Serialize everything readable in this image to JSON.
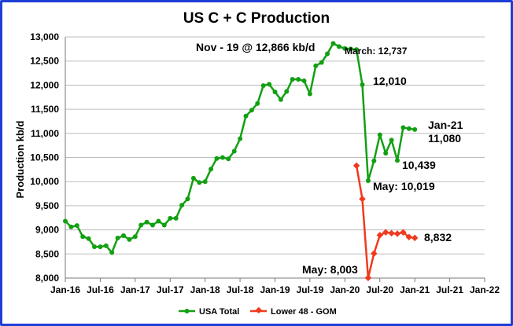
{
  "chart_data": {
    "type": "line",
    "title": "US C + C Production",
    "ylabel": "Production kb/d",
    "xlabel": "",
    "ylim": [
      8000,
      13000
    ],
    "yticks": [
      8000,
      8500,
      9000,
      9500,
      10000,
      10500,
      11000,
      11500,
      12000,
      12500,
      13000
    ],
    "ytick_labels": [
      "8,000",
      "8,500",
      "9,000",
      "9,500",
      "10,000",
      "10,500",
      "11,000",
      "11,500",
      "12,000",
      "12,500",
      "13,000"
    ],
    "xticks": [
      "Jan-16",
      "Jul-16",
      "Jan-17",
      "Jul-17",
      "Jan-18",
      "Jul-18",
      "Jan-19",
      "Jul-19",
      "Jan-20",
      "Jul-20",
      "Jan-21",
      "Jul-21",
      "Jan-22"
    ],
    "grid": "horizontal",
    "legend": "bottom",
    "series": [
      {
        "name": "USA Total",
        "color": "#12a012",
        "x": [
          "2016-01",
          "2016-02",
          "2016-03",
          "2016-04",
          "2016-05",
          "2016-06",
          "2016-07",
          "2016-08",
          "2016-09",
          "2016-10",
          "2016-11",
          "2016-12",
          "2017-01",
          "2017-02",
          "2017-03",
          "2017-04",
          "2017-05",
          "2017-06",
          "2017-07",
          "2017-08",
          "2017-09",
          "2017-10",
          "2017-11",
          "2017-12",
          "2018-01",
          "2018-02",
          "2018-03",
          "2018-04",
          "2018-05",
          "2018-06",
          "2018-07",
          "2018-08",
          "2018-09",
          "2018-10",
          "2018-11",
          "2018-12",
          "2019-01",
          "2019-02",
          "2019-03",
          "2019-04",
          "2019-05",
          "2019-06",
          "2019-07",
          "2019-08",
          "2019-09",
          "2019-10",
          "2019-11",
          "2019-12",
          "2020-01",
          "2020-02",
          "2020-03",
          "2020-04",
          "2020-05",
          "2020-06",
          "2020-07",
          "2020-08",
          "2020-09",
          "2020-10",
          "2020-11",
          "2020-12",
          "2021-01"
        ],
        "values": [
          9180,
          9060,
          9090,
          8860,
          8820,
          8650,
          8650,
          8670,
          8530,
          8830,
          8880,
          8800,
          8860,
          9100,
          9160,
          9100,
          9180,
          9100,
          9240,
          9240,
          9510,
          9640,
          10070,
          9980,
          10000,
          10260,
          10480,
          10500,
          10470,
          10630,
          10890,
          11360,
          11480,
          11620,
          11990,
          12020,
          11860,
          11700,
          11870,
          12120,
          12120,
          12090,
          11820,
          12400,
          12470,
          12650,
          12866,
          12800,
          12760,
          12750,
          12737,
          12010,
          10019,
          10430,
          10970,
          10590,
          10860,
          10439,
          11120,
          11100,
          11080
        ]
      },
      {
        "name": "Lower 48 - GOM",
        "color": "#f03a1e",
        "x": [
          "2020-03",
          "2020-04",
          "2020-05",
          "2020-06",
          "2020-07",
          "2020-08",
          "2020-09",
          "2020-10",
          "2020-11",
          "2020-12",
          "2021-01"
        ],
        "values": [
          10330,
          9640,
          8003,
          8510,
          8890,
          8950,
          8930,
          8920,
          8950,
          8850,
          8832
        ]
      }
    ],
    "annotations": [
      {
        "text": "Nov - 19 @ 12,866 kb/d"
      },
      {
        "text": "March: 12,737"
      },
      {
        "text": "12,010"
      },
      {
        "text": "Jan-21"
      },
      {
        "text": "11,080"
      },
      {
        "text": "10,439"
      },
      {
        "text": "May: 10,019"
      },
      {
        "text": "May: 8,003"
      },
      {
        "text": "8,832"
      }
    ]
  }
}
